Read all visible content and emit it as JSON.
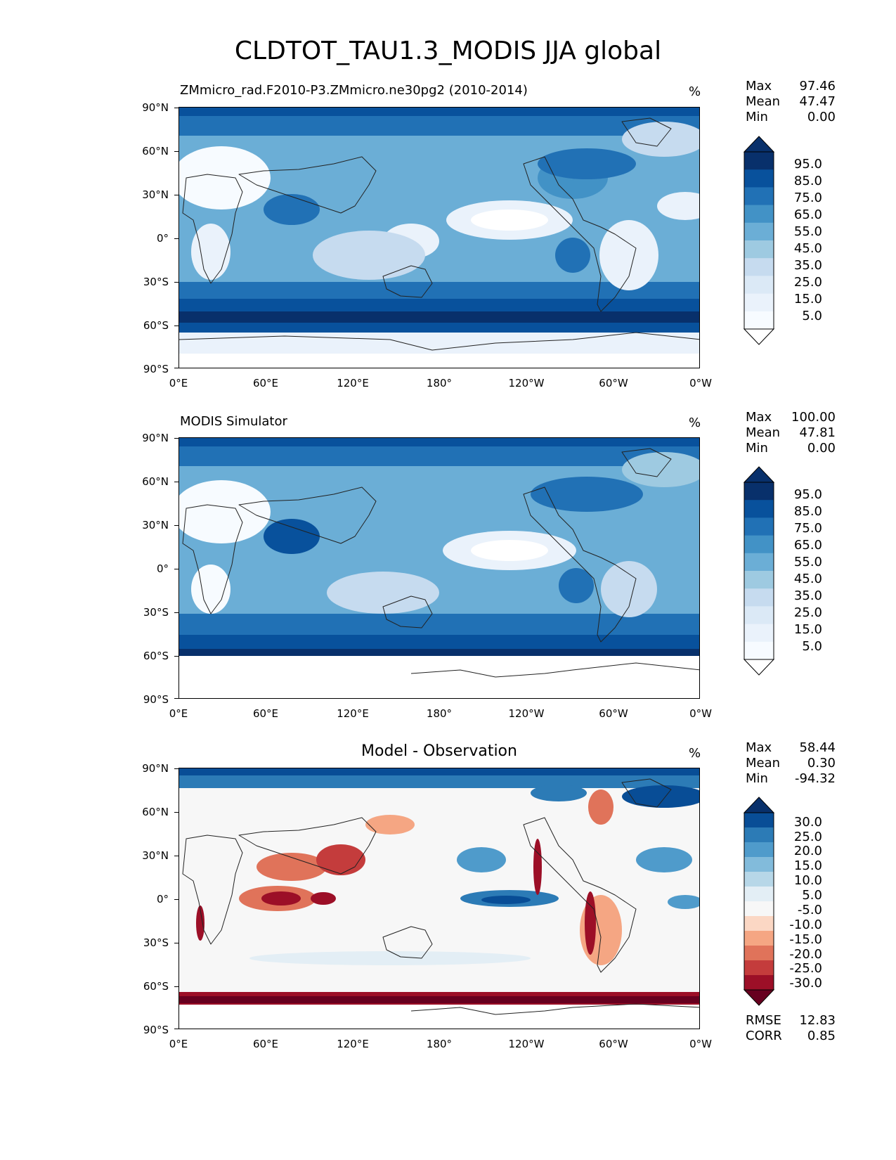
{
  "figure": {
    "title": "CLDTOT_TAU1.3_MODIS JJA global"
  },
  "axes": {
    "lat_ticks": [
      "90°N",
      "60°N",
      "30°N",
      "0°",
      "30°S",
      "60°S",
      "90°S"
    ],
    "lon_ticks": [
      "0°E",
      "60°E",
      "120°E",
      "180°",
      "120°W",
      "60°W",
      "0°W"
    ]
  },
  "panels": [
    {
      "title": "ZMmicro_rad.F2010-P3.ZMmicro.ne30pg2 (2010-2014)",
      "units": "%",
      "stats": [
        {
          "label": "Max",
          "value": "97.46"
        },
        {
          "label": "Mean",
          "value": "47.47"
        },
        {
          "label": "Min",
          "value": "0.00"
        }
      ],
      "colorbar": {
        "labels": [
          "95.0",
          "85.0",
          "75.0",
          "65.0",
          "55.0",
          "45.0",
          "35.0",
          "25.0",
          "15.0",
          "5.0"
        ],
        "colors": [
          "#08306b",
          "#08519c",
          "#2171b5",
          "#4292c6",
          "#6baed6",
          "#9ecae1",
          "#c6dbef",
          "#dbe9f6",
          "#eaf2fb",
          "#f7fbff"
        ],
        "extend_top": "#08306b",
        "extend_bottom": "#ffffff"
      },
      "map_base_color": "#6baed6"
    },
    {
      "title": "MODIS Simulator",
      "units": "%",
      "stats": [
        {
          "label": "Max",
          "value": "100.00"
        },
        {
          "label": "Mean",
          "value": "47.81"
        },
        {
          "label": "Min",
          "value": "0.00"
        }
      ],
      "colorbar": {
        "labels": [
          "95.0",
          "85.0",
          "75.0",
          "65.0",
          "55.0",
          "45.0",
          "35.0",
          "25.0",
          "15.0",
          "5.0"
        ],
        "colors": [
          "#08306b",
          "#08519c",
          "#2171b5",
          "#4292c6",
          "#6baed6",
          "#9ecae1",
          "#c6dbef",
          "#dbe9f6",
          "#eaf2fb",
          "#f7fbff"
        ],
        "extend_top": "#08306b",
        "extend_bottom": "#ffffff"
      },
      "map_base_color": "#6baed6"
    },
    {
      "title": "Model - Observation",
      "units": "%",
      "stats": [
        {
          "label": "Max",
          "value": "58.44"
        },
        {
          "label": "Mean",
          "value": "0.30"
        },
        {
          "label": "Min",
          "value": "-94.32"
        }
      ],
      "colorbar": {
        "labels": [
          "30.0",
          "25.0",
          "20.0",
          "15.0",
          "10.0",
          "5.0",
          "-5.0",
          "-10.0",
          "-15.0",
          "-20.0",
          "-25.0",
          "-30.0"
        ],
        "colors": [
          "#084d96",
          "#2c7bb6",
          "#4f9bcb",
          "#82bbdb",
          "#b7d7e8",
          "#e3eef5",
          "#f7f7f7",
          "#fbd7c4",
          "#f5a683",
          "#e0735a",
          "#c43c3c",
          "#9c0f27"
        ],
        "extend_top": "#08306b",
        "extend_bottom": "#67001f"
      },
      "map_base_color": "#f7f7f7",
      "metrics": [
        {
          "label": "RMSE",
          "value": "12.83"
        },
        {
          "label": "CORR",
          "value": "0.85"
        }
      ]
    }
  ]
}
